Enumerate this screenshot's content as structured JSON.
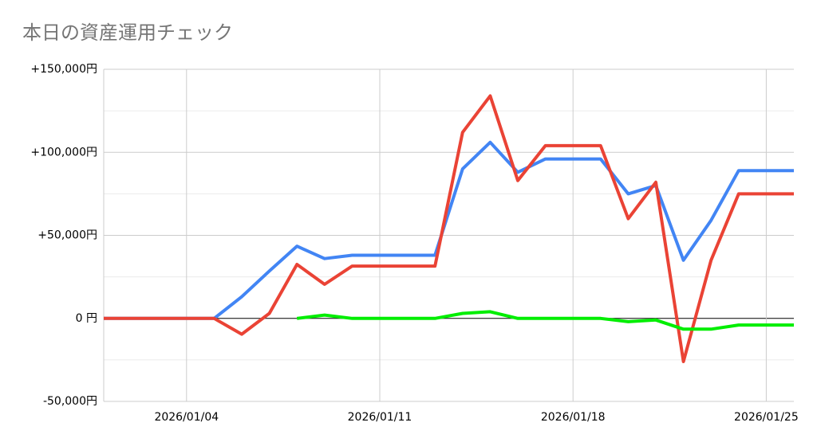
{
  "chart_data": {
    "type": "line",
    "title": "本日の資産運用チェック",
    "x": [
      "2026/01/01",
      "2026/01/02",
      "2026/01/03",
      "2026/01/04",
      "2026/01/05",
      "2026/01/06",
      "2026/01/07",
      "2026/01/08",
      "2026/01/09",
      "2026/01/10",
      "2026/01/11",
      "2026/01/12",
      "2026/01/13",
      "2026/01/14",
      "2026/01/15",
      "2026/01/16",
      "2026/01/17",
      "2026/01/18",
      "2026/01/19",
      "2026/01/20",
      "2026/01/21",
      "2026/01/22",
      "2026/01/23",
      "2026/01/24",
      "2026/01/25",
      "2026/01/26"
    ],
    "series": [
      {
        "color": "#4285f4",
        "values": [
          0,
          0,
          0,
          0,
          0,
          13000,
          28500,
          43500,
          36000,
          38000,
          38000,
          38000,
          38000,
          90000,
          106000,
          88000,
          96000,
          96000,
          96000,
          75000,
          80000,
          35000,
          59000,
          89000,
          89000,
          89000
        ]
      },
      {
        "color": "#ea4335",
        "values": [
          0,
          0,
          0,
          0,
          0,
          -9500,
          3000,
          32500,
          20500,
          31500,
          31500,
          31500,
          31500,
          112000,
          134000,
          83000,
          104000,
          104000,
          104000,
          60000,
          82000,
          -26000,
          35000,
          75000,
          75000,
          75000
        ]
      },
      {
        "color": "#00ee00",
        "values": [
          null,
          null,
          null,
          null,
          null,
          null,
          null,
          0,
          2000,
          0,
          0,
          0,
          0,
          3000,
          4000,
          0,
          0,
          0,
          0,
          -2000,
          -1000,
          -6500,
          -6500,
          -4000,
          -4000,
          -4000
        ]
      }
    ],
    "xlim": [
      "2026/01/01",
      "2026/01/26"
    ],
    "xticks": [
      "2026/01/04",
      "2026/01/11",
      "2026/01/18",
      "2026/01/25"
    ],
    "ylim": [
      -50000,
      150000
    ],
    "yticks": [
      {
        "value": -50000,
        "label": "-50,000円"
      },
      {
        "value": 0,
        "label": "0 円"
      },
      {
        "value": 50000,
        "label": "+50,000円"
      },
      {
        "value": 100000,
        "label": "+100,000円"
      },
      {
        "value": 150000,
        "label": "+150,000円"
      }
    ],
    "minor_yticks": [
      -25000,
      25000,
      75000,
      125000
    ],
    "grid": true
  }
}
